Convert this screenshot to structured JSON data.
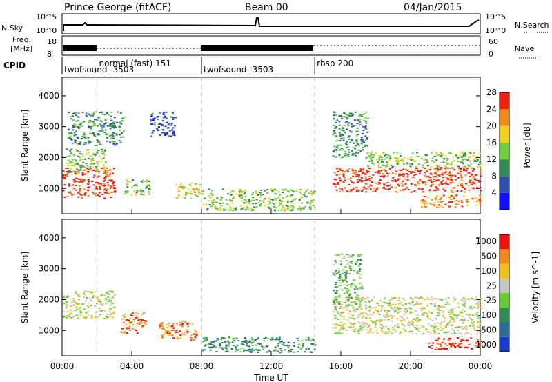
{
  "header": {
    "station": "Prince George (fitACF)",
    "beam": "Beam 00",
    "date": "04/Jan/2015"
  },
  "nsky_panel": {
    "left_label": "N.Sky",
    "right_label": "N.Search",
    "left_ticks": [
      "10^5",
      "10^0"
    ],
    "right_ticks": [
      "10^5",
      "10^0"
    ]
  },
  "freq_panel": {
    "left_label_1": "Freq.",
    "left_label_2": "[MHz]",
    "right_label": "Nave",
    "left_ticks": [
      "18",
      "8"
    ],
    "right_ticks": [
      "60",
      "0"
    ]
  },
  "cpid": {
    "label": "CPID",
    "programs": [
      {
        "name": "twofsound -3503",
        "start_hour": 0.0,
        "row": 1
      },
      {
        "name": "normal (fast) 151",
        "start_hour": 2.0,
        "row": 0
      },
      {
        "name": "twofsound -3503",
        "start_hour": 8.0,
        "row": 1
      },
      {
        "name": "rbsp 200",
        "start_hour": 14.5,
        "row": 0
      }
    ]
  },
  "chart_data": [
    {
      "type": "heatmap",
      "name": "Power",
      "xlabel": "Time UT",
      "ylabel": "Slant Range [km]",
      "x_ticks": [
        "00:00",
        "04:00",
        "08:00",
        "12:00",
        "16:00",
        "20:00",
        "00:00"
      ],
      "x_range_hours": [
        0,
        24
      ],
      "y_ticks": [
        1000,
        2000,
        3000,
        4000
      ],
      "y_range": [
        180,
        4600
      ],
      "colorbar": {
        "label": "Power [dB]",
        "ticks": [
          "4",
          "8",
          "12",
          "16",
          "20",
          "24",
          "28"
        ],
        "colors": [
          "#1010ff",
          "#3050b0",
          "#2e8b57",
          "#6fce3c",
          "#f0d020",
          "#f08a1c",
          "#f02010"
        ]
      },
      "dashed_lines_hours": [
        2.0,
        8.0,
        14.5
      ],
      "regions": [
        {
          "t0": 0.0,
          "t1": 3.0,
          "r0": 700,
          "r1": 1700,
          "level": 6
        },
        {
          "t0": 0.2,
          "t1": 2.6,
          "r0": 1500,
          "r1": 2300,
          "level": 3
        },
        {
          "t0": 0.3,
          "t1": 3.5,
          "r0": 2400,
          "r1": 3500,
          "level": 2
        },
        {
          "t0": 3.5,
          "t1": 5.0,
          "r0": 800,
          "r1": 1300,
          "level": 3
        },
        {
          "t0": 5.0,
          "t1": 6.5,
          "r0": 2700,
          "r1": 3500,
          "level": 1
        },
        {
          "t0": 6.5,
          "t1": 8.0,
          "r0": 700,
          "r1": 1200,
          "level": 4
        },
        {
          "t0": 8.0,
          "t1": 14.5,
          "r0": 300,
          "r1": 1000,
          "level": 3
        },
        {
          "t0": 15.5,
          "t1": 24.0,
          "r0": 900,
          "r1": 1700,
          "level": 6
        },
        {
          "t0": 15.5,
          "t1": 17.5,
          "r0": 2000,
          "r1": 3500,
          "level": 2
        },
        {
          "t0": 17.5,
          "t1": 24.0,
          "r0": 1700,
          "r1": 2200,
          "level": 3
        },
        {
          "t0": 20.5,
          "t1": 24.0,
          "r0": 400,
          "r1": 800,
          "level": 5
        }
      ]
    },
    {
      "type": "heatmap",
      "name": "Velocity",
      "xlabel": "Time UT",
      "ylabel": "Slant Range [km]",
      "x_ticks": [
        "00:00",
        "04:00",
        "08:00",
        "12:00",
        "16:00",
        "20:00",
        "00:00"
      ],
      "x_range_hours": [
        0,
        24
      ],
      "y_ticks": [
        1000,
        2000,
        3000,
        4000
      ],
      "y_range": [
        180,
        4600
      ],
      "colorbar": {
        "label": "Velocity [m s^-1]",
        "ticks": [
          "1000",
          "500",
          "100",
          "25",
          "-25",
          "-100",
          "-500",
          "-1000"
        ],
        "colors": [
          "#1a3cc8",
          "#2c6a9a",
          "#2e8b57",
          "#66cc33",
          "#c8c8c0",
          "#f0c020",
          "#f08a1c",
          "#f01010"
        ]
      },
      "dashed_lines_hours": [
        2.0,
        8.0,
        14.5
      ],
      "regions": [
        {
          "t0": 0.0,
          "t1": 3.0,
          "r0": 1400,
          "r1": 2300,
          "level": 4
        },
        {
          "t0": 3.3,
          "t1": 4.8,
          "r0": 900,
          "r1": 1600,
          "level": 6
        },
        {
          "t0": 5.5,
          "t1": 7.7,
          "r0": 700,
          "r1": 1300,
          "level": 6
        },
        {
          "t0": 8.0,
          "t1": 14.5,
          "r0": 300,
          "r1": 800,
          "level": 2
        },
        {
          "t0": 15.5,
          "t1": 24.0,
          "r0": 900,
          "r1": 2100,
          "level": 4
        },
        {
          "t0": 15.5,
          "t1": 17.2,
          "r0": 1800,
          "r1": 3500,
          "level": 3
        },
        {
          "t0": 21.0,
          "t1": 24.0,
          "r0": 400,
          "r1": 800,
          "level": 7
        }
      ]
    }
  ]
}
